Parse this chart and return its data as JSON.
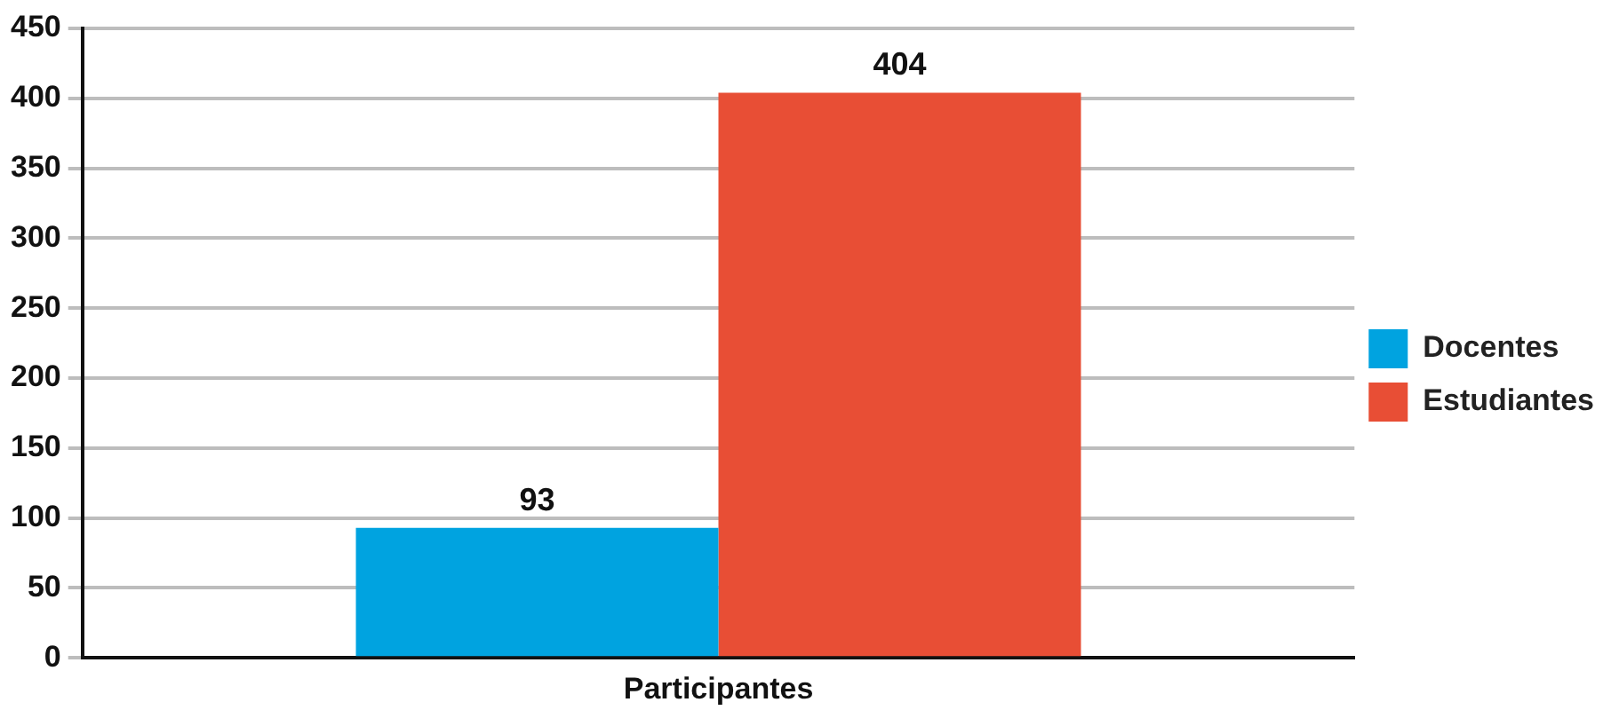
{
  "chart_data": {
    "type": "bar",
    "categories": [
      "Participantes"
    ],
    "series": [
      {
        "name": "Docentes",
        "color": "#00a3e0",
        "values": [
          93
        ]
      },
      {
        "name": "Estudiantes",
        "color": "#e84e35",
        "values": [
          404
        ]
      }
    ],
    "ylim": [
      0,
      450
    ],
    "yticks": [
      0,
      50,
      100,
      150,
      200,
      250,
      300,
      350,
      400,
      450
    ],
    "grid": "y",
    "legend": "right",
    "data_labels": true
  }
}
